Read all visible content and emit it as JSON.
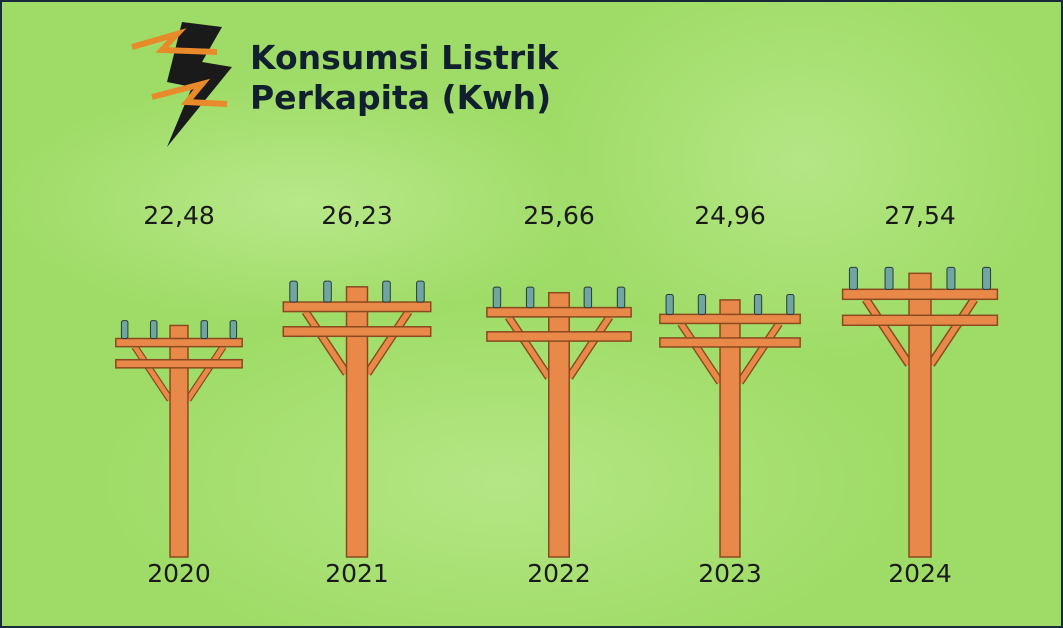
{
  "chart_data": {
    "type": "bar",
    "title": "Konsumsi Listrik Perkapita (Kwh)",
    "categories": [
      "2020",
      "2021",
      "2022",
      "2023",
      "2024"
    ],
    "values": [
      22.48,
      26.23,
      25.66,
      24.96,
      27.54
    ],
    "value_labels": [
      "22,48",
      "26,23",
      "25,66",
      "24,96",
      "27,54"
    ],
    "color": "#e8894a"
  }
}
